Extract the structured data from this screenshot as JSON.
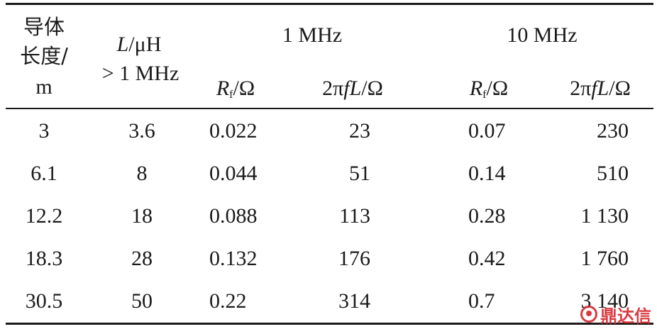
{
  "table": {
    "headers": {
      "conductor_length": [
        "导体",
        "长度/",
        "m"
      ],
      "inductance_label": "L",
      "inductance_unit": "/μH",
      "inductance_condition": "> 1 MHz",
      "freq1": "1 MHz",
      "freq2": "10 MHz",
      "rf_r": "R",
      "rf_sub": "f",
      "rf_unit": "/Ω",
      "xl_prefix": "2π",
      "xl_italic": "fL",
      "xl_unit": "/Ω"
    },
    "rows": [
      {
        "length": "3",
        "l": "3.6",
        "rf1": "0.022",
        "xl1": "23",
        "rf10": "0.07",
        "xl10": "230"
      },
      {
        "length": "6.1",
        "l": "8",
        "rf1": "0.044",
        "xl1": "51",
        "rf10": "0.14",
        "xl10": "510"
      },
      {
        "length": "12.2",
        "l": "18",
        "rf1": "0.088",
        "xl1": "113",
        "rf10": "0.28",
        "xl10": "1 130"
      },
      {
        "length": "18.3",
        "l": "28",
        "rf1": "0.132",
        "xl1": "176",
        "rf10": "0.42",
        "xl10": "1 760"
      },
      {
        "length": "30.5",
        "l": "50",
        "rf1": "0.22",
        "xl1": "314",
        "rf10": "0.7",
        "xl10": "3 140"
      }
    ]
  },
  "watermark": {
    "text": "鼎达信",
    "icon": "brand-logo-icon",
    "color": "#d7262b"
  }
}
